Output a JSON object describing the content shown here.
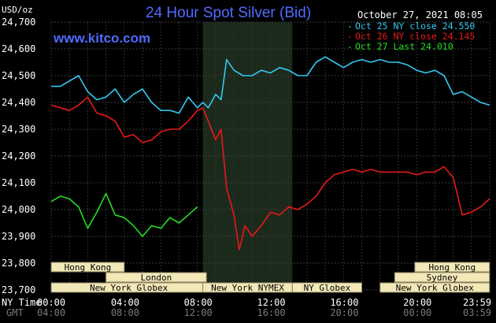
{
  "chart_data": {
    "type": "line",
    "title": "24 Hour Spot Silver (Bid)",
    "brand": "www.kitco.com",
    "timestamp": "October 27, 2021 08:05",
    "ylabel": "USD/oz",
    "ylim": [
      23.7,
      24.7
    ],
    "y_ticks": [
      "24,700",
      "24,600",
      "24,500",
      "24,400",
      "24,300",
      "24,200",
      "24,100",
      "24,000",
      "23,900",
      "23,800",
      "23,700"
    ],
    "x_label_ny": "NY Time",
    "x_label_gmt": "GMT",
    "x_ticks_ny": [
      "00:00",
      "04:00",
      "08:00",
      "12:00",
      "16:00",
      "20:00",
      "23:59"
    ],
    "x_ticks_gmt": [
      "04:00",
      "08:00",
      "12:00",
      "16:00",
      "20:00",
      "00:00",
      "03:59"
    ],
    "x_range_hours": [
      0,
      24
    ],
    "highlight_hours": [
      8.3,
      13.2
    ],
    "grid": true,
    "legend_position": "top-right",
    "series": [
      {
        "name": "Oct 25 NY close 24.550",
        "color": "#33c8f0",
        "x": [
          0,
          0.5,
          1,
          1.5,
          2,
          2.5,
          3,
          3.5,
          4,
          4.5,
          5,
          5.5,
          6,
          6.5,
          7,
          7.5,
          8,
          8.3,
          8.6,
          9,
          9.3,
          9.6,
          10,
          10.5,
          11,
          11.5,
          12,
          12.5,
          13,
          13.5,
          14,
          14.5,
          15,
          15.5,
          16,
          16.5,
          17,
          17.5,
          18,
          18.5,
          19,
          19.5,
          20,
          20.5,
          21,
          21.5,
          22,
          22.5,
          23,
          23.5,
          23.99
        ],
        "y": [
          24.46,
          24.46,
          24.48,
          24.5,
          24.44,
          24.41,
          24.42,
          24.45,
          24.4,
          24.43,
          24.45,
          24.4,
          24.37,
          24.37,
          24.36,
          24.42,
          24.38,
          24.4,
          24.38,
          24.43,
          24.41,
          24.56,
          24.52,
          24.5,
          24.5,
          24.52,
          24.51,
          24.53,
          24.52,
          24.5,
          24.5,
          24.55,
          24.57,
          24.55,
          24.53,
          24.55,
          24.56,
          24.55,
          24.56,
          24.55,
          24.55,
          24.54,
          24.52,
          24.51,
          24.52,
          24.5,
          24.43,
          24.44,
          24.42,
          24.4,
          24.39
        ]
      },
      {
        "name": "Oct 26 NY close 24.145",
        "color": "#e81818",
        "x": [
          0,
          0.5,
          1,
          1.5,
          2,
          2.5,
          3,
          3.5,
          4,
          4.5,
          5,
          5.5,
          6,
          6.5,
          7,
          7.5,
          8,
          8.3,
          8.6,
          9,
          9.3,
          9.6,
          10,
          10.3,
          10.6,
          11,
          11.5,
          12,
          12.5,
          13,
          13.5,
          14,
          14.5,
          15,
          15.5,
          16,
          16.5,
          17,
          17.5,
          18,
          18.5,
          19,
          19.5,
          20,
          20.5,
          21,
          21.5,
          22,
          22.5,
          23,
          23.5,
          23.99
        ],
        "y": [
          24.39,
          24.38,
          24.37,
          24.39,
          24.42,
          24.36,
          24.35,
          24.33,
          24.27,
          24.28,
          24.25,
          24.26,
          24.29,
          24.3,
          24.3,
          24.33,
          24.37,
          24.38,
          24.33,
          24.26,
          24.3,
          24.08,
          23.98,
          23.85,
          23.94,
          23.9,
          23.94,
          23.99,
          23.98,
          24.01,
          24.0,
          24.02,
          24.05,
          24.1,
          24.13,
          24.14,
          24.15,
          24.14,
          24.15,
          24.14,
          24.14,
          24.14,
          24.14,
          24.13,
          24.14,
          24.14,
          24.16,
          24.12,
          23.98,
          23.99,
          24.01,
          24.04
        ]
      },
      {
        "name": "Oct 27 Last 24.010",
        "color": "#22dd22",
        "x": [
          0,
          0.5,
          1,
          1.5,
          2,
          2.5,
          3,
          3.5,
          4,
          4.5,
          5,
          5.5,
          6,
          6.5,
          7,
          7.5,
          8
        ],
        "y": [
          24.03,
          24.05,
          24.04,
          24.01,
          23.93,
          23.99,
          24.06,
          23.98,
          23.97,
          23.94,
          23.9,
          23.94,
          23.93,
          23.97,
          23.95,
          23.98,
          24.01
        ]
      }
    ],
    "sessions": [
      {
        "label": "Hong Kong",
        "start": 0,
        "end": 4,
        "row": 0
      },
      {
        "label": "London",
        "start": 3,
        "end": 8.5,
        "row": 1
      },
      {
        "label": "New York Globex",
        "start": 0,
        "end": 8.5,
        "row": 2
      },
      {
        "label": "New York NYMEX",
        "start": 8.3,
        "end": 13.2,
        "row": 2
      },
      {
        "label": "NY Globex",
        "start": 13.2,
        "end": 17,
        "row": 2
      },
      {
        "label": "Hong Kong",
        "start": 19.9,
        "end": 23.99,
        "row": 0
      },
      {
        "label": "Sydney",
        "start": 18.8,
        "end": 23.99,
        "row": 1
      },
      {
        "label": "New York Globex",
        "start": 18,
        "end": 23.99,
        "row": 2
      }
    ]
  }
}
